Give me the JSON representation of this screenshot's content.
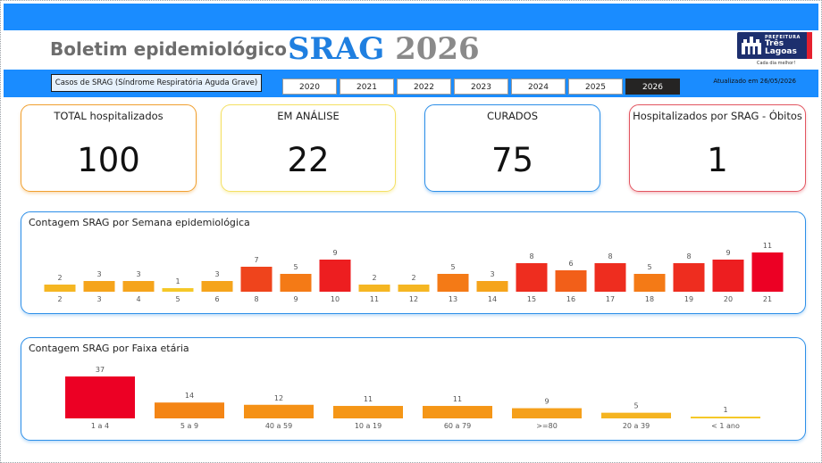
{
  "header": {
    "title": "Boletim epidemiológico",
    "srag_word": "SRAG",
    "srag_year": "2026"
  },
  "logo": {
    "prefeitura": "PREFEITURA",
    "city_line1": "Três",
    "city_line2": "Lagoas",
    "tagline": "Cada dia melhor!"
  },
  "filters": {
    "subtitle": "Casos de SRAG (Síndrome Respiratória Aguda Grave)",
    "years": [
      {
        "label": "2020",
        "active": false
      },
      {
        "label": "2021",
        "active": false
      },
      {
        "label": "2022",
        "active": false
      },
      {
        "label": "2023",
        "active": false
      },
      {
        "label": "2024",
        "active": false
      },
      {
        "label": "2025",
        "active": false
      },
      {
        "label": "2026",
        "active": true
      }
    ],
    "updated": "Atualizado em 26/05/2026"
  },
  "kpis": {
    "total": {
      "label": "TOTAL hospitalizados",
      "value": "100"
    },
    "analise": {
      "label": "EM ANÁLISE",
      "value": "22"
    },
    "curados": {
      "label": "CURADOS",
      "value": "75"
    },
    "obitos": {
      "label": "Hospitalizados por SRAG - Óbitos",
      "value": "1"
    }
  },
  "colors": {
    "top_bar": "#1a8cff",
    "srag_blue": "#1f7fe0",
    "kpi_total": "#f0a030",
    "kpi_analise": "#f4e064",
    "kpi_curados": "#2d8fe8",
    "kpi_obitos": "#e25560"
  },
  "chart_data": [
    {
      "type": "bar",
      "title": "Contagem SRAG por Semana epidemiológica",
      "categories": [
        "2",
        "3",
        "4",
        "5",
        "6",
        "8",
        "9",
        "10",
        "11",
        "12",
        "13",
        "14",
        "15",
        "16",
        "17",
        "18",
        "19",
        "20",
        "21"
      ],
      "values": [
        2,
        3,
        3,
        1,
        3,
        7,
        5,
        9,
        2,
        2,
        5,
        3,
        8,
        6,
        8,
        5,
        8,
        9,
        11
      ],
      "ylim": [
        0,
        11
      ],
      "data_labels": true,
      "color_scale": "yellow-orange-red by value"
    },
    {
      "type": "bar",
      "title": "Contagem SRAG por Faixa etária",
      "categories": [
        "1 a 4",
        "5 a 9",
        "40 a 59",
        "10 a 19",
        "60 a 79",
        ">=80",
        "20 a 39",
        "< 1 ano"
      ],
      "values": [
        37,
        14,
        12,
        11,
        11,
        9,
        5,
        1
      ],
      "ylim": [
        0,
        37
      ],
      "data_labels": true,
      "color_scale": "yellow-orange-red by value"
    }
  ]
}
